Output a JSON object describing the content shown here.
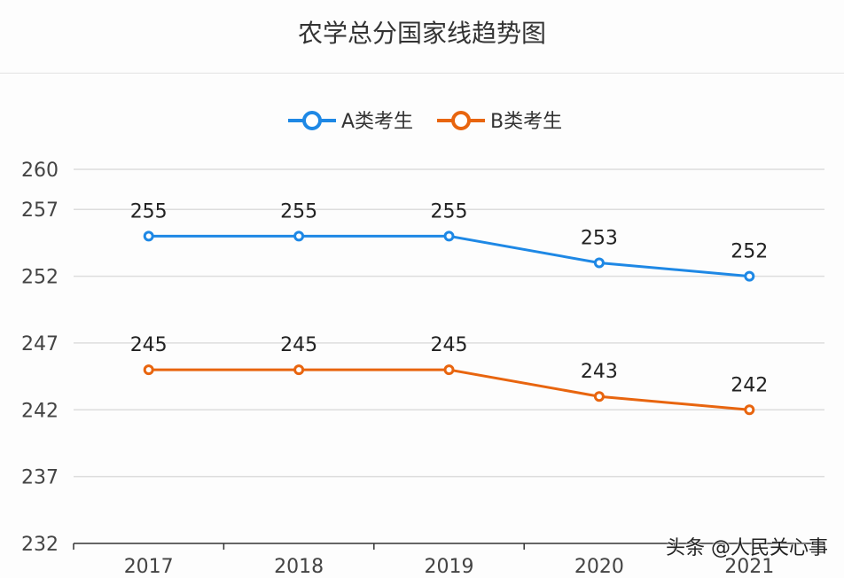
{
  "chart_data": {
    "type": "line",
    "title": "农学总分国家线趋势图",
    "categories": [
      "2017",
      "2018",
      "2019",
      "2020",
      "2021"
    ],
    "series": [
      {
        "name": "A类考生",
        "values": [
          255,
          255,
          255,
          253,
          252
        ],
        "color": "#1e88e5"
      },
      {
        "name": "B类考生",
        "values": [
          245,
          245,
          245,
          243,
          242
        ],
        "color": "#e8650f"
      }
    ],
    "yticks": [
      232,
      237,
      242,
      247,
      252,
      257,
      260
    ],
    "ylim": [
      232,
      260
    ],
    "grid": true,
    "legend": "top-center",
    "data_labels": true
  },
  "watermark": "头条 @人民关心事"
}
